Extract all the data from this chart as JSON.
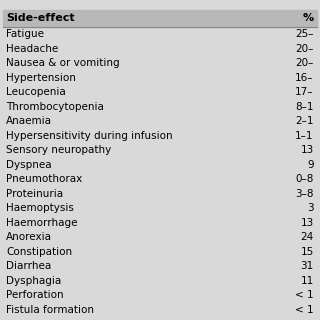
{
  "title_col1": "Side-effect",
  "title_col2": "%",
  "rows": [
    [
      "Fatigue",
      "25–"
    ],
    [
      "Headache",
      "20–"
    ],
    [
      "Nausea & or vomiting",
      "20–"
    ],
    [
      "Hypertension",
      "16–"
    ],
    [
      "Leucopenia",
      "17–"
    ],
    [
      "Thrombocytopenia",
      "8–1"
    ],
    [
      "Anaemia",
      "2–1"
    ],
    [
      "Hypersensitivity during infusion",
      "1–1"
    ],
    [
      "Sensory neuropathy",
      "13"
    ],
    [
      "Dyspnea",
      "9"
    ],
    [
      "Pneumothorax",
      "0–8"
    ],
    [
      "Proteinuria",
      "3–8"
    ],
    [
      "Haemoptysis",
      "3"
    ],
    [
      "Haemorrhage",
      "13"
    ],
    [
      "Anorexia",
      "24"
    ],
    [
      "Constipation",
      "15"
    ],
    [
      "Diarrhea",
      "31"
    ],
    [
      "Dysphagia",
      "11"
    ],
    [
      "Perforation",
      "< 1"
    ],
    [
      "Fistula formation",
      "< 1"
    ]
  ],
  "bg_color": "#d9d9d9",
  "header_bg": "#b8b8b8",
  "text_color": "#000000",
  "font_size": 7.5,
  "header_font_size": 8.0
}
